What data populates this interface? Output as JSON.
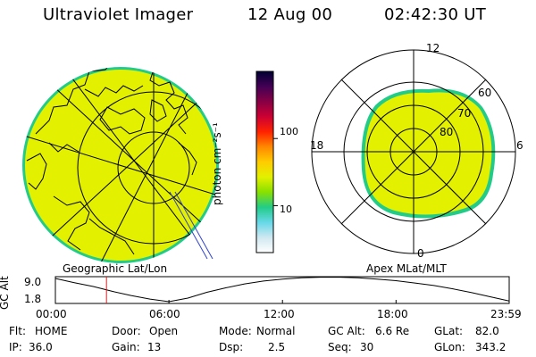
{
  "header": {
    "instrument": "Ultraviolet Imager",
    "date": "12 Aug 00",
    "time": "02:42:30 UT"
  },
  "geo_panel": {
    "label": "Geographic Lat/Lon",
    "fill_color": "#e3f000",
    "edge_color": "#22cc88"
  },
  "apex_panel": {
    "label": "Apex MLat/MLT",
    "mlt_labels": {
      "top": "12",
      "left": "18",
      "right": "6",
      "bottom": "0"
    },
    "mlat_labels": [
      "60",
      "70",
      "80"
    ],
    "fill_color": "#e3f000",
    "edge_color": "#22cc88"
  },
  "colorbar": {
    "unit_label": "photon cm⁻²s⁻¹",
    "tick_labels": [
      "100",
      "10"
    ],
    "ticks": [
      100,
      10
    ],
    "scale": "log",
    "range": [
      2,
      1000
    ],
    "colors": [
      "#ffffff",
      "#cfe8f0",
      "#66d8e8",
      "#22cc88",
      "#88e000",
      "#e3f000",
      "#ffcc00",
      "#ff8800",
      "#ff2200",
      "#cc0033",
      "#880044",
      "#440055",
      "#000033"
    ]
  },
  "altitude_plot": {
    "ylabel": "GC Alt",
    "y_ticks": [
      "9.0",
      "1.8"
    ],
    "x_ticks": [
      "00:00",
      "06:00",
      "12:00",
      "18:00",
      "23:59"
    ],
    "x_hours": [
      0,
      6,
      12,
      18,
      23.98
    ],
    "marker_hour": 2.7,
    "curve": {
      "hours": [
        0,
        1,
        2,
        3,
        4,
        5,
        6,
        7,
        8,
        9,
        10,
        11,
        12,
        13,
        14,
        15,
        16,
        17,
        18,
        19,
        20,
        21,
        22,
        23,
        23.98
      ],
      "alt": [
        9.0,
        7.7,
        6.5,
        5.0,
        3.7,
        2.6,
        1.8,
        2.9,
        4.7,
        6.1,
        7.3,
        8.2,
        8.8,
        9.2,
        9.4,
        9.4,
        9.2,
        8.8,
        8.3,
        7.6,
        6.8,
        5.8,
        4.6,
        3.3,
        2.0
      ]
    },
    "ylim": [
      1.8,
      9.0
    ]
  },
  "status": {
    "flt_label": "Flt:",
    "flt_value": "HOME",
    "door_label": "Door:",
    "door_value": "Open",
    "mode_label": "Mode:",
    "mode_value": "Normal",
    "gcalt_label": "GC Alt:",
    "gcalt_value": "6.6 Re",
    "glat_label": "GLat:",
    "glat_value": "82.0",
    "ip_label": "IP:",
    "ip_value": "36.0",
    "gain_label": "Gain:",
    "gain_value": "13",
    "dsp_label": "Dsp:",
    "dsp_value": "2.5",
    "seq_label": "Seq:",
    "seq_value": "30",
    "glon_label": "GLon:",
    "glon_value": "343.2"
  }
}
